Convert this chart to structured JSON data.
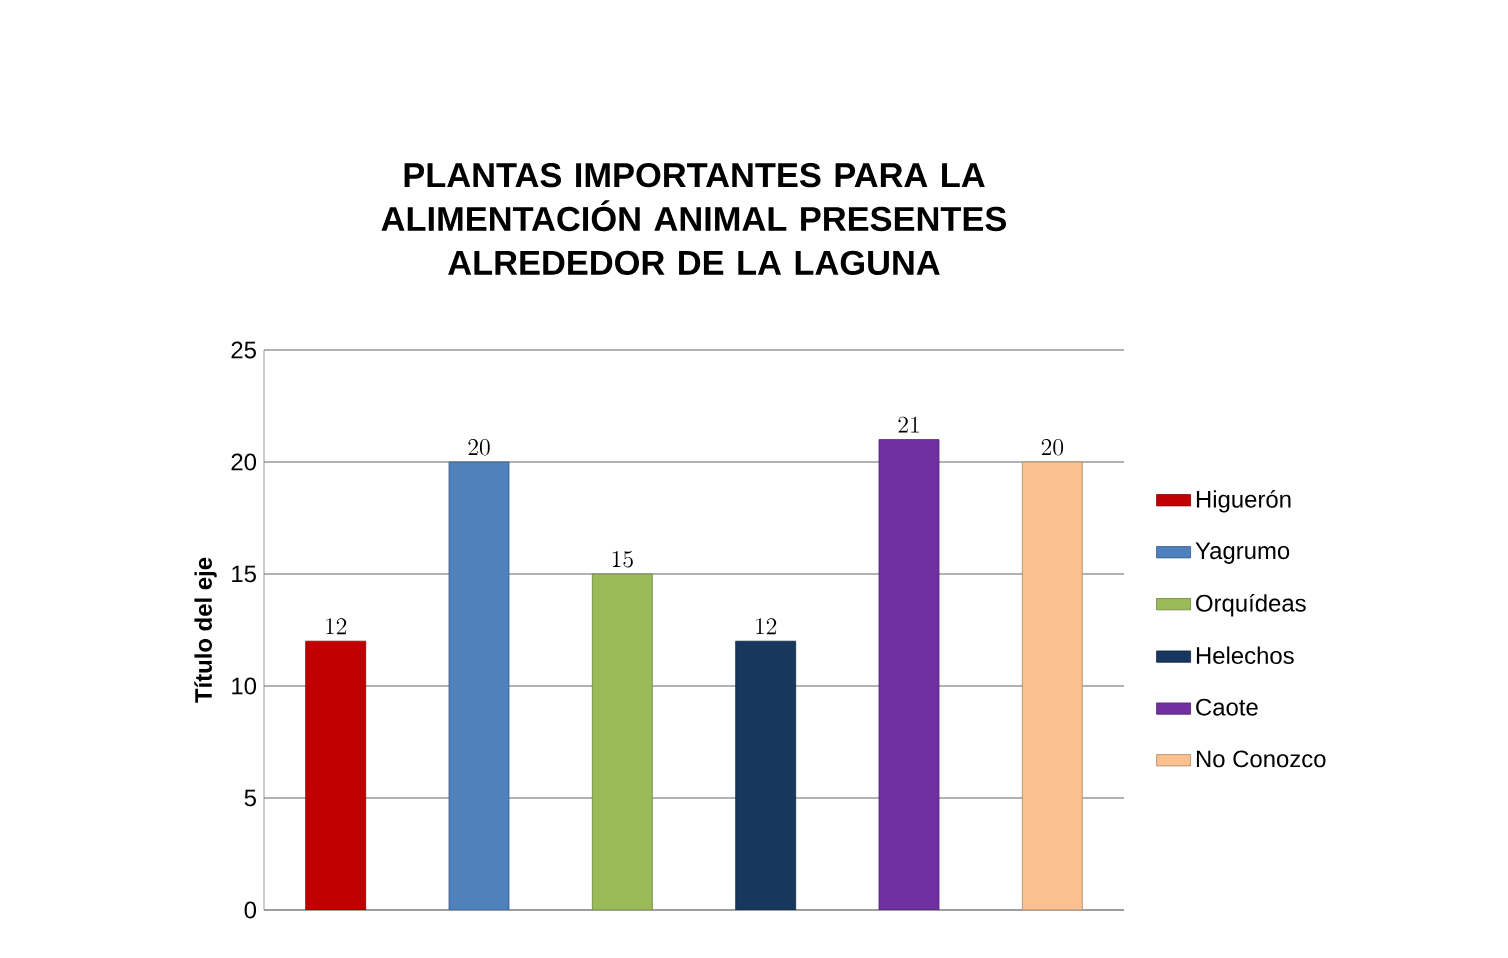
{
  "chart_data": {
    "type": "bar",
    "title": "PLANTAS IMPORTANTES PARA LA ALIMENTACIÓN ANIMAL PRESENTES ALREDEDOR DE LA LAGUNA",
    "ylabel": "Título del eje",
    "categories": [
      null,
      null,
      null,
      null,
      null,
      null
    ],
    "series": [
      {
        "name": "Higuerón",
        "color": "#c00000",
        "values": [
          12,
          null,
          null,
          null,
          null,
          null
        ]
      },
      {
        "name": "Yagrumo",
        "color": "#4f81bd",
        "values": [
          null,
          20,
          null,
          null,
          null,
          null
        ]
      },
      {
        "name": "Orquídeas",
        "color": "#9bbb59",
        "values": [
          null,
          null,
          15,
          null,
          null,
          null
        ]
      },
      {
        "name": "Helechos",
        "color": "#17375e",
        "values": [
          null,
          null,
          null,
          12,
          null,
          null
        ]
      },
      {
        "name": "Caote",
        "color": "#7030a0",
        "values": [
          null,
          null,
          null,
          null,
          21,
          null
        ]
      },
      {
        "name": "No Conozco",
        "color": "#fac090",
        "values": [
          null,
          null,
          null,
          null,
          null,
          20
        ]
      }
    ],
    "ylim": [
      0,
      25
    ],
    "yticks": [
      0,
      5,
      10,
      15,
      20,
      25
    ],
    "grid": "y",
    "legend": "right",
    "data_labels": true
  }
}
